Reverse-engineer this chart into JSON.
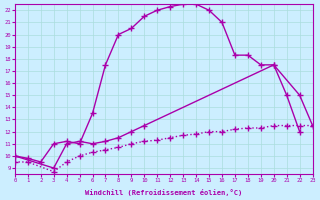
{
  "xlabel": "Windchill (Refroidissement éolien,°C)",
  "xlim": [
    0,
    23
  ],
  "ylim": [
    8.5,
    22.5
  ],
  "xticks": [
    0,
    1,
    2,
    3,
    4,
    5,
    6,
    7,
    8,
    9,
    10,
    11,
    12,
    13,
    14,
    15,
    16,
    17,
    18,
    19,
    20,
    21,
    22,
    23
  ],
  "yticks": [
    9,
    10,
    11,
    12,
    13,
    14,
    15,
    16,
    17,
    18,
    19,
    20,
    21,
    22
  ],
  "bg_color": "#cceeff",
  "line_color": "#aa00aa",
  "grid_color": "#aadddd",
  "curve1_x": [
    0,
    1,
    2,
    3,
    4,
    5,
    6,
    7,
    8,
    9,
    10,
    11,
    12,
    13,
    14,
    15,
    16,
    17,
    18,
    19,
    20,
    21,
    22
  ],
  "curve1_y": [
    10.0,
    9.8,
    9.5,
    11.0,
    11.2,
    11.0,
    13.5,
    17.5,
    20.0,
    20.5,
    21.5,
    22.0,
    22.3,
    22.5,
    22.5,
    22.0,
    21.0,
    18.3,
    18.3,
    17.5,
    17.5,
    15.0,
    12.0
  ],
  "curve2_x": [
    0,
    3,
    4,
    5,
    6,
    7,
    8,
    9,
    10,
    20,
    22,
    23
  ],
  "curve2_y": [
    10.0,
    9.0,
    11.0,
    11.2,
    11.0,
    11.2,
    11.5,
    12.0,
    12.5,
    17.5,
    15.0,
    12.5
  ],
  "curve3_x": [
    0,
    1,
    3,
    4,
    5,
    6,
    7,
    8,
    9,
    10,
    11,
    12,
    13,
    14,
    15,
    16,
    17,
    18,
    19,
    20,
    21,
    22,
    23
  ],
  "curve3_y": [
    9.5,
    9.5,
    8.7,
    9.5,
    10.0,
    10.3,
    10.5,
    10.7,
    11.0,
    11.2,
    11.3,
    11.5,
    11.7,
    11.8,
    12.0,
    12.0,
    12.2,
    12.3,
    12.3,
    12.5,
    12.5,
    12.5,
    12.5
  ],
  "marker": "+",
  "markersize": 4,
  "linewidth": 1.0
}
